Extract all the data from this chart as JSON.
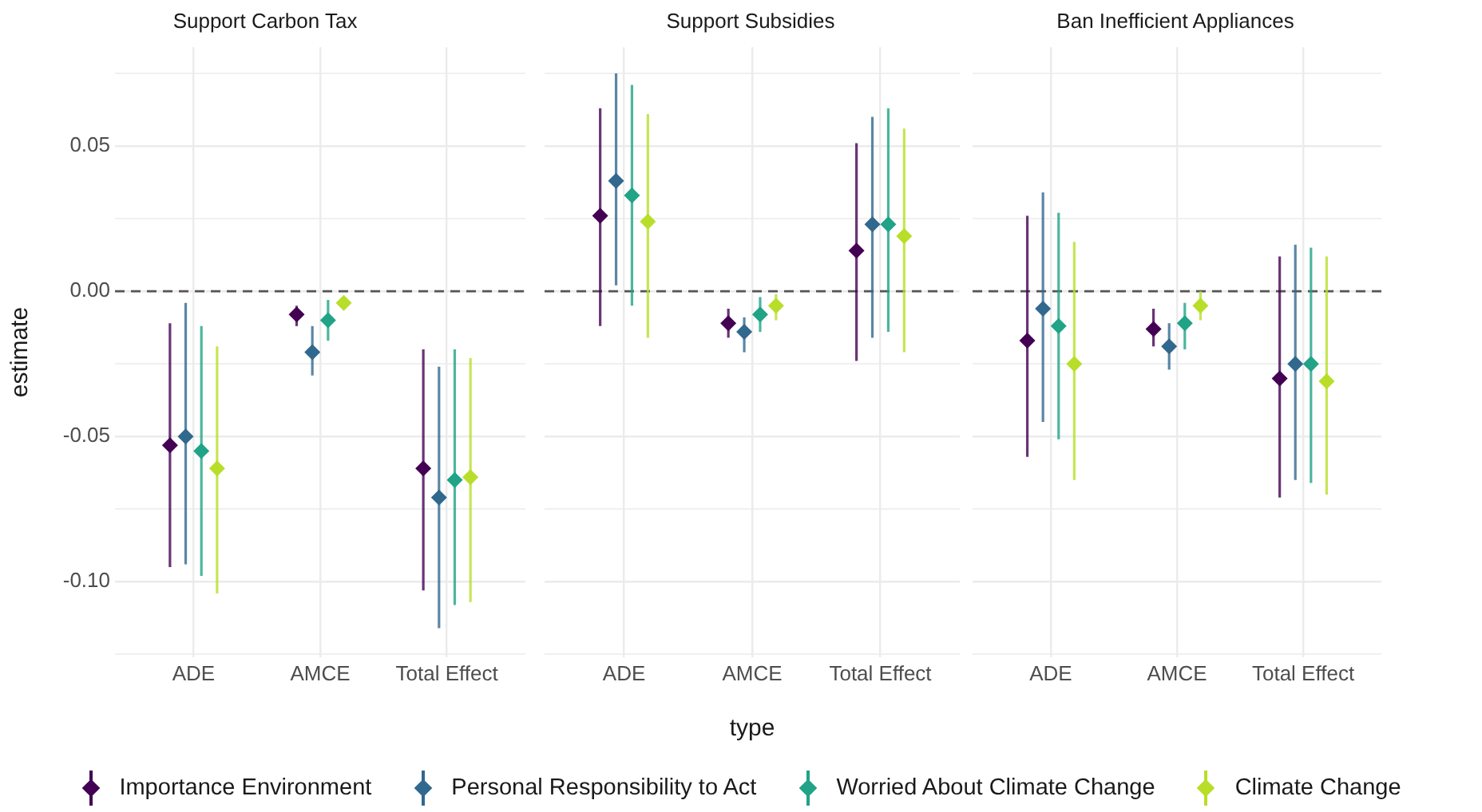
{
  "chart_data": [
    {
      "type": "scatter",
      "title": "Support Carbon Tax",
      "ylabel": "estimate",
      "categories": [
        "ADE",
        "AMCE",
        "Total Effect"
      ],
      "ylim": [
        -0.126,
        0.084
      ],
      "yticks": [
        {
          "value": -0.125,
          "label": null
        },
        {
          "value": -0.1,
          "label": "-0.10"
        },
        {
          "value": -0.075,
          "label": null
        },
        {
          "value": -0.05,
          "label": "-0.05"
        },
        {
          "value": -0.025,
          "label": null
        },
        {
          "value": 0,
          "label": "0.00"
        },
        {
          "value": 0.025,
          "label": null
        },
        {
          "value": 0.05,
          "label": "0.05"
        },
        {
          "value": 0.075,
          "label": null
        }
      ],
      "grid": true,
      "marker": "diamond",
      "legend": "bottom",
      "ref_lines": [
        {
          "axis": "y",
          "value": 0,
          "color": "#555555",
          "line_style": "dashed"
        }
      ],
      "series": [
        {
          "name": "Importance Environment",
          "color": "#440154",
          "values": [
            -0.053,
            -0.008,
            -0.061
          ],
          "errors": [
            [
              -0.095,
              -0.011
            ],
            [
              -0.012,
              -0.005
            ],
            [
              -0.103,
              -0.02
            ]
          ]
        },
        {
          "name": "Personal Responsibility to Act",
          "color": "#31688e",
          "values": [
            -0.05,
            -0.021,
            -0.071
          ],
          "errors": [
            [
              -0.094,
              -0.004
            ],
            [
              -0.029,
              -0.012
            ],
            [
              -0.116,
              -0.026
            ]
          ]
        },
        {
          "name": "Worried About Climate Change",
          "color": "#20a386",
          "values": [
            -0.055,
            -0.01,
            -0.065
          ],
          "errors": [
            [
              -0.098,
              -0.012
            ],
            [
              -0.017,
              -0.003
            ],
            [
              -0.108,
              -0.02
            ]
          ]
        },
        {
          "name": "Climate Change",
          "color": "#b8de29",
          "values": [
            -0.061,
            -0.004,
            -0.064
          ],
          "errors": [
            [
              -0.104,
              -0.019
            ],
            [
              -0.006,
              -0.002
            ],
            [
              -0.107,
              -0.023
            ]
          ]
        }
      ]
    },
    {
      "type": "scatter",
      "title": "Support Subsidies",
      "xlabel": "type",
      "categories": [
        "ADE",
        "AMCE",
        "Total Effect"
      ],
      "ylim": [
        -0.126,
        0.084
      ],
      "tick_labels": "x",
      "grid": true,
      "marker": "diamond",
      "ref_lines": [
        {
          "axis": "y",
          "value": 0,
          "color": "#555555",
          "line_style": "dashed"
        }
      ],
      "series": [
        {
          "color": "#440154",
          "values": [
            0.026,
            -0.011,
            0.014
          ],
          "errors": [
            [
              -0.012,
              0.063
            ],
            [
              -0.016,
              -0.006
            ],
            [
              -0.024,
              0.051
            ]
          ]
        },
        {
          "color": "#31688e",
          "values": [
            0.038,
            -0.014,
            0.023
          ],
          "errors": [
            [
              0.002,
              0.075
            ],
            [
              -0.021,
              -0.009
            ],
            [
              -0.016,
              0.06
            ]
          ]
        },
        {
          "color": "#20a386",
          "values": [
            0.033,
            -0.008,
            0.023
          ],
          "errors": [
            [
              -0.005,
              0.071
            ],
            [
              -0.014,
              -0.002
            ],
            [
              -0.014,
              0.063
            ]
          ]
        },
        {
          "color": "#b8de29",
          "values": [
            0.024,
            -0.005,
            0.019
          ],
          "errors": [
            [
              -0.016,
              0.061
            ],
            [
              -0.01,
              -0.001
            ],
            [
              -0.021,
              0.056
            ]
          ]
        }
      ]
    },
    {
      "type": "scatter",
      "title": "Ban Inefficient Appliances",
      "categories": [
        "ADE",
        "AMCE",
        "Total Effect"
      ],
      "ylim": [
        -0.126,
        0.084
      ],
      "tick_labels": "x",
      "grid": true,
      "marker": "diamond",
      "ref_lines": [
        {
          "axis": "y",
          "value": 0,
          "color": "#555555",
          "line_style": "dashed"
        }
      ],
      "series": [
        {
          "color": "#440154",
          "values": [
            -0.017,
            -0.013,
            -0.03
          ],
          "errors": [
            [
              -0.057,
              0.026
            ],
            [
              -0.019,
              -0.006
            ],
            [
              -0.071,
              0.012
            ]
          ]
        },
        {
          "color": "#31688e",
          "values": [
            -0.006,
            -0.019,
            -0.025
          ],
          "errors": [
            [
              -0.045,
              0.034
            ],
            [
              -0.027,
              -0.011
            ],
            [
              -0.065,
              0.016
            ]
          ]
        },
        {
          "color": "#20a386",
          "values": [
            -0.012,
            -0.011,
            -0.025
          ],
          "errors": [
            [
              -0.051,
              0.027
            ],
            [
              -0.02,
              -0.004
            ],
            [
              -0.066,
              0.015
            ]
          ]
        },
        {
          "color": "#b8de29",
          "values": [
            -0.025,
            -0.005,
            -0.031
          ],
          "errors": [
            [
              -0.065,
              0.017
            ],
            [
              -0.01,
              0
            ],
            [
              -0.07,
              0.012
            ]
          ]
        }
      ]
    }
  ]
}
